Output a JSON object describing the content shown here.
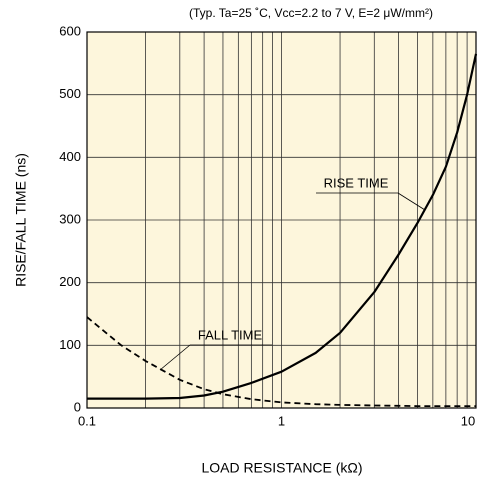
{
  "chart_data": {
    "type": "line",
    "title": "(Typ. Ta=25 ˚C, Vcc=2.2 to 7 V, E=2 μW/mm²)",
    "xlabel": "LOAD RESISTANCE (kΩ)",
    "ylabel": "RISE/FALL TIME (ns)",
    "xscale": "log",
    "x": [
      0.1,
      0.15,
      0.2,
      0.3,
      0.4,
      0.5,
      0.7,
      1,
      1.5,
      2,
      3,
      4,
      5,
      6,
      7,
      8,
      9,
      10
    ],
    "series": [
      {
        "name": "RISE TIME",
        "color": "#000000",
        "dash": "solid",
        "values": [
          15,
          15,
          15,
          16,
          20,
          26,
          40,
          58,
          88,
          120,
          185,
          245,
          295,
          340,
          385,
          440,
          500,
          565
        ]
      },
      {
        "name": "FALL TIME",
        "color": "#000000",
        "dash": "dashed",
        "values": [
          145,
          100,
          75,
          45,
          30,
          22,
          14,
          9,
          6,
          5,
          4,
          3.5,
          3,
          3,
          3,
          3,
          3,
          3
        ]
      }
    ],
    "xlim": [
      0.1,
      10
    ],
    "ylim": [
      0,
      600
    ],
    "xticks": [
      0.1,
      1,
      10
    ],
    "xminor_ticks": [
      0.2,
      0.3,
      0.4,
      0.5,
      0.6,
      0.7,
      0.8,
      0.9,
      2,
      3,
      4,
      5,
      6,
      7,
      8,
      9
    ],
    "yticks": [
      0,
      100,
      200,
      300,
      400,
      500,
      600
    ],
    "grid": true,
    "background": "#fdf6dc"
  }
}
